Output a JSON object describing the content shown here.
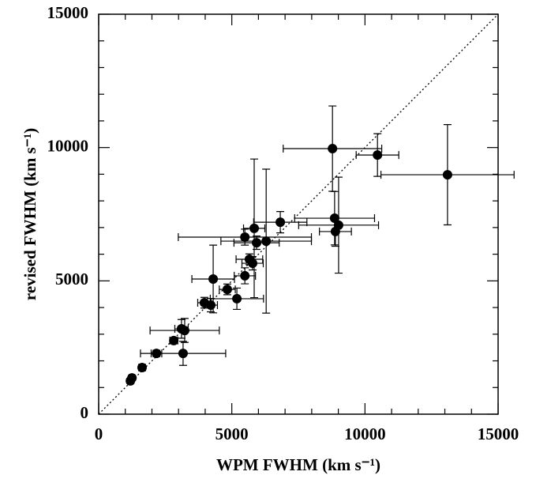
{
  "chart_data": {
    "type": "scatter",
    "xlabel": "WPM FWHM (km s⁻¹)",
    "ylabel": "revised FWHM (km s⁻¹)",
    "x": [
      1190,
      1250,
      1630,
      2170,
      2820,
      3110,
      3170,
      3230,
      3970,
      4210,
      4300,
      4830,
      5190,
      5490,
      5490,
      5660,
      5780,
      5840,
      5930,
      6290,
      6820,
      8780,
      10470,
      13100,
      8860,
      9010,
      8890
    ],
    "y": [
      1250,
      1360,
      1750,
      2280,
      2760,
      3200,
      2280,
      3140,
      4180,
      4090,
      5070,
      4680,
      4330,
      5190,
      6640,
      5810,
      5660,
      6970,
      6430,
      6490,
      7200,
      9960,
      9720,
      8980,
      7350,
      7090,
      6850
    ],
    "xerr": [
      100,
      100,
      120,
      200,
      150,
      250,
      1600,
      1300,
      250,
      250,
      800,
      300,
      1000,
      400,
      2500,
      500,
      400,
      400,
      850,
      1700,
      1000,
      1850,
      800,
      2500,
      1500,
      1500,
      600
    ],
    "yerr": [
      100,
      100,
      100,
      120,
      100,
      350,
      450,
      450,
      200,
      250,
      1270,
      200,
      400,
      300,
      300,
      200,
      250,
      2600,
      250,
      2700,
      400,
      1600,
      800,
      1880,
      1000,
      1800,
      550
    ],
    "color": "#000000",
    "xlim": [
      0,
      15000
    ],
    "ylim": [
      0,
      15000
    ],
    "xticks": [
      0,
      5000,
      10000,
      15000
    ],
    "yticks": [
      0,
      5000,
      10000,
      15000
    ],
    "minor_ticks": [
      1000,
      2000,
      3000,
      4000,
      6000,
      7000,
      8000,
      9000,
      11000,
      12000,
      13000,
      14000
    ],
    "identity_line": true
  }
}
